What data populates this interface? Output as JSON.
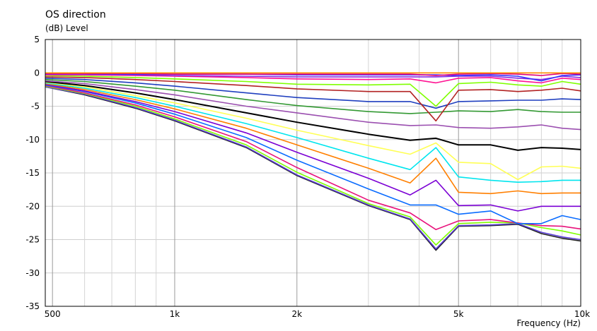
{
  "chart_data": {
    "type": "line",
    "title": "OS direction",
    "ylabel": "(dB)  Level",
    "xlabel": "Frequency  (Hz)",
    "x_scale": "log",
    "xlim": [
      480,
      10000
    ],
    "ylim": [
      -35,
      5
    ],
    "grid": true,
    "legend": "none",
    "x_ticks": [
      {
        "value": 500,
        "label": "500"
      },
      {
        "value": 1000,
        "label": "1k"
      },
      {
        "value": 2000,
        "label": "2k"
      },
      {
        "value": 5000,
        "label": "5k"
      },
      {
        "value": 10000,
        "label": "10k"
      }
    ],
    "x_minor_grid": [
      600,
      700,
      800,
      900,
      3000,
      4000,
      6000,
      7000,
      8000,
      9000
    ],
    "y_ticks": [
      {
        "value": 5,
        "label": "5"
      },
      {
        "value": 0,
        "label": "0"
      },
      {
        "value": -5,
        "label": "-5"
      },
      {
        "value": -10,
        "label": "-10"
      },
      {
        "value": -15,
        "label": "-15"
      },
      {
        "value": -20,
        "label": "-20"
      },
      {
        "value": -25,
        "label": "-25"
      },
      {
        "value": -30,
        "label": "-30"
      },
      {
        "value": -35,
        "label": "-35"
      }
    ],
    "x": [
      480,
      600,
      800,
      1000,
      1500,
      2000,
      3000,
      3800,
      4400,
      5000,
      6000,
      7000,
      8000,
      9000,
      10000
    ],
    "series": [
      {
        "color": "#ff8c00",
        "values": [
          0,
          0,
          0,
          0,
          0,
          0,
          0,
          0,
          0,
          0,
          0,
          0,
          0,
          0,
          0
        ]
      },
      {
        "color": "#e0007a",
        "values": [
          -0.1,
          -0.1,
          -0.1,
          -0.2,
          -0.2,
          -0.2,
          -0.2,
          -0.2,
          -0.4,
          -0.2,
          -0.1,
          -0.2,
          -0.4,
          -0.1,
          -0.2
        ]
      },
      {
        "color": "#3333ff",
        "values": [
          -0.1,
          -0.1,
          -0.2,
          -0.2,
          -0.2,
          -0.3,
          -0.3,
          -0.3,
          -0.3,
          -0.4,
          -0.3,
          -0.5,
          -1.2,
          -0.4,
          -0.3
        ]
      },
      {
        "color": "#8a2be2",
        "values": [
          -0.2,
          -0.2,
          -0.3,
          -0.4,
          -0.5,
          -0.6,
          -0.6,
          -0.6,
          -0.6,
          -0.5,
          -0.5,
          -0.8,
          -1.0,
          -0.5,
          -0.7
        ]
      },
      {
        "color": "#ff1493",
        "values": [
          -0.3,
          -0.3,
          -0.4,
          -0.5,
          -0.7,
          -0.9,
          -1.0,
          -0.9,
          -1.5,
          -0.8,
          -0.7,
          -1.2,
          -1.5,
          -0.8,
          -1.0
        ]
      },
      {
        "color": "#7fff00",
        "values": [
          -0.4,
          -0.5,
          -0.7,
          -0.9,
          -1.3,
          -1.7,
          -1.8,
          -1.7,
          -5.0,
          -1.6,
          -1.4,
          -1.8,
          -2.0,
          -1.3,
          -1.7
        ]
      },
      {
        "color": "#b22222",
        "values": [
          -0.6,
          -0.7,
          -1.0,
          -1.3,
          -1.9,
          -2.4,
          -2.8,
          -2.8,
          -7.2,
          -2.6,
          -2.5,
          -2.8,
          -2.6,
          -2.3,
          -2.7
        ]
      },
      {
        "color": "#1f3fbf",
        "values": [
          -0.8,
          -1.0,
          -1.5,
          -2.0,
          -3.0,
          -3.7,
          -4.3,
          -4.3,
          -5.3,
          -4.3,
          -4.2,
          -4.1,
          -4.1,
          -3.9,
          -4.0
        ]
      },
      {
        "color": "#339933",
        "values": [
          -1.0,
          -1.3,
          -2.0,
          -2.6,
          -4.0,
          -4.9,
          -5.8,
          -6.1,
          -5.9,
          -5.7,
          -5.8,
          -5.5,
          -5.8,
          -5.9,
          -5.9
        ]
      },
      {
        "color": "#9b4fb0",
        "values": [
          -1.2,
          -1.6,
          -2.5,
          -3.3,
          -5.0,
          -6.0,
          -7.4,
          -7.9,
          -7.8,
          -8.2,
          -8.3,
          -8.1,
          -7.8,
          -8.3,
          -8.5
        ]
      },
      {
        "color": "#000000",
        "values": [
          -1.3,
          -1.9,
          -3.0,
          -4.0,
          -6.0,
          -7.4,
          -9.2,
          -10.1,
          -9.8,
          -10.8,
          -10.8,
          -11.6,
          -11.2,
          -11.3,
          -11.5
        ]
      },
      {
        "color": "#ffff55",
        "values": [
          -1.4,
          -2.1,
          -3.4,
          -4.5,
          -6.8,
          -8.6,
          -10.9,
          -12.2,
          -10.5,
          -13.4,
          -13.6,
          -16.0,
          -14.1,
          -14.0,
          -14.3
        ]
      },
      {
        "color": "#00e5ee",
        "values": [
          -1.5,
          -2.3,
          -3.7,
          -5.0,
          -7.6,
          -9.7,
          -12.8,
          -14.5,
          -11.2,
          -15.6,
          -16.1,
          -16.4,
          -16.3,
          -16.1,
          -16.1
        ]
      },
      {
        "color": "#ff7f00",
        "values": [
          -1.6,
          -2.5,
          -4.0,
          -5.4,
          -8.3,
          -10.8,
          -14.3,
          -16.5,
          -12.8,
          -17.9,
          -18.1,
          -17.7,
          -18.1,
          -18.0,
          -18.0
        ]
      },
      {
        "color": "#7b00d4",
        "values": [
          -1.7,
          -2.7,
          -4.3,
          -5.8,
          -9.0,
          -11.9,
          -15.8,
          -18.3,
          -16.1,
          -19.9,
          -19.8,
          -20.7,
          -20.0,
          -20.0,
          -20.0
        ]
      },
      {
        "color": "#0a6cff",
        "values": [
          -1.8,
          -2.8,
          -4.5,
          -6.2,
          -9.7,
          -13.1,
          -17.4,
          -19.8,
          -19.8,
          -21.2,
          -20.7,
          -22.6,
          -22.6,
          -21.4,
          -22.0
        ]
      },
      {
        "color": "#e8127c",
        "values": [
          -1.9,
          -3.0,
          -4.8,
          -6.6,
          -10.3,
          -14.2,
          -19.1,
          -21.0,
          -23.5,
          -22.2,
          -22.0,
          -22.5,
          -22.9,
          -23.0,
          -23.4
        ]
      },
      {
        "color": "#80ff00",
        "values": [
          -2.0,
          -3.1,
          -5.0,
          -6.9,
          -10.8,
          -14.9,
          -19.6,
          -21.6,
          -25.8,
          -22.6,
          -22.4,
          -22.5,
          -23.2,
          -23.7,
          -24.3
        ]
      },
      {
        "color": "#5b3fd6",
        "values": [
          -2.1,
          -3.2,
          -5.2,
          -7.1,
          -11.1,
          -15.3,
          -19.8,
          -21.9,
          -26.4,
          -22.9,
          -22.8,
          -22.6,
          -23.9,
          -24.6,
          -25.0
        ]
      },
      {
        "color": "#222222",
        "values": [
          -2.1,
          -3.3,
          -5.3,
          -7.2,
          -11.2,
          -15.4,
          -19.9,
          -22.0,
          -26.6,
          -23.0,
          -22.9,
          -22.7,
          -24.1,
          -24.8,
          -25.2
        ]
      }
    ]
  }
}
